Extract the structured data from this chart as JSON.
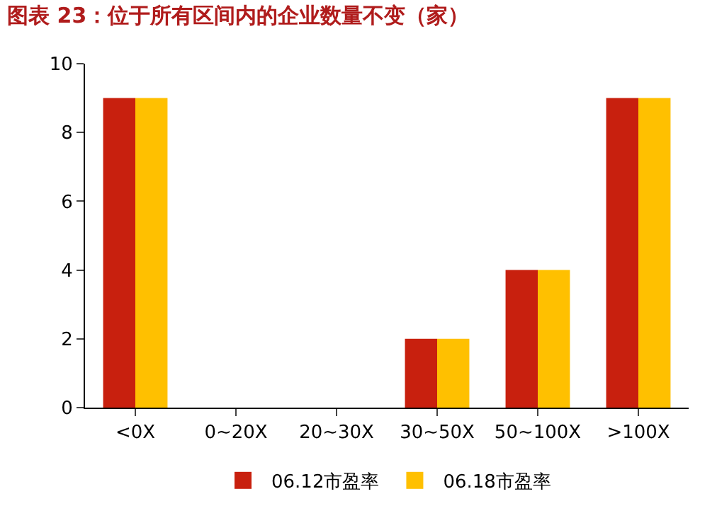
{
  "chart_data": {
    "type": "bar",
    "title": "图表 23：位于所有区间内的企业数量不变（家）",
    "categories": [
      "<0X",
      "0~20X",
      "20~30X",
      "30~50X",
      "50~100X",
      ">100X"
    ],
    "series": [
      {
        "name": "06.12市盈率",
        "color": "#c8200e",
        "values": [
          9,
          0,
          0,
          2,
          4,
          9
        ]
      },
      {
        "name": "06.18市盈率",
        "color": "#ffc000",
        "values": [
          9,
          0,
          0,
          2,
          4,
          9
        ]
      }
    ],
    "ylim": [
      0,
      10
    ],
    "yticks": [
      0,
      2,
      4,
      6,
      8,
      10
    ],
    "legend": "bottom"
  }
}
